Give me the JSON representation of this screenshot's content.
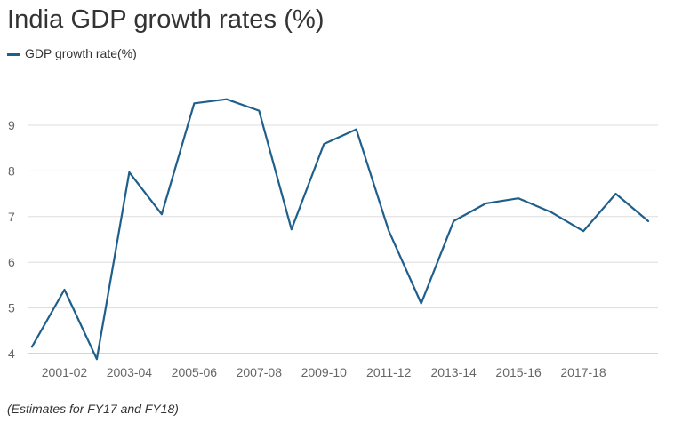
{
  "chart_data": {
    "type": "line",
    "title": "India GDP growth rates (%)",
    "xlabel": "",
    "ylabel": "",
    "x_tick_labels": [
      "2001-02",
      "2003-04",
      "2005-06",
      "2007-08",
      "2009-10",
      "2011-12",
      "2013-14",
      "2015-16",
      "2017-18"
    ],
    "y_ticks": [
      4,
      5,
      6,
      7,
      8,
      9
    ],
    "ylim": [
      4,
      10
    ],
    "grid": true,
    "legend_position": "top-left",
    "series": [
      {
        "name": "GDP growth rate(%)",
        "color": "#1f5f8b",
        "x": [
          "2000-01",
          "2001-02",
          "2002-03",
          "2003-04",
          "2004-05",
          "2005-06",
          "2006-07",
          "2007-08",
          "2008-09",
          "2009-10",
          "2010-11",
          "2011-12",
          "2012-13",
          "2013-14",
          "2014-15",
          "2015-16",
          "2016-17",
          "2017-18",
          "2018-19",
          "2019-20"
        ],
        "values": [
          4.15,
          5.4,
          3.88,
          7.97,
          7.05,
          9.48,
          9.57,
          9.32,
          6.72,
          8.59,
          8.91,
          6.69,
          5.1,
          6.9,
          7.29,
          7.4,
          7.1,
          6.68,
          7.5,
          6.9
        ]
      }
    ],
    "footnote": "(Estimates for FY17 and FY18)"
  }
}
